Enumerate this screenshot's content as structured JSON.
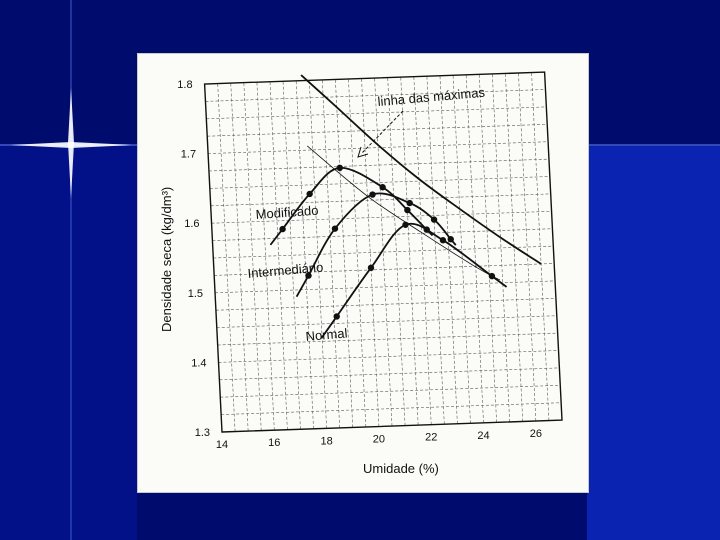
{
  "slide": {
    "background_color": "#000b6e",
    "band_color": "#0a23b0",
    "sparkle_color": "#ffffff"
  },
  "chart_data": {
    "type": "line",
    "title": "",
    "xlabel": "Umidade (%)",
    "ylabel": "Densidade seca (kg/dm³)",
    "xlim": [
      14,
      27
    ],
    "ylim": [
      1.3,
      1.8
    ],
    "xticks": [
      "14",
      "16",
      "18",
      "20",
      "22",
      "24",
      "26"
    ],
    "yticks": [
      "1.3",
      "1.4",
      "1.5",
      "1.6",
      "1.7",
      "1.8"
    ],
    "grid": true,
    "series": [
      {
        "name": "Modificado",
        "points": [
          [
            16.7,
            1.588
          ],
          [
            17.8,
            1.637
          ],
          [
            19.0,
            1.673
          ],
          [
            20.6,
            1.643
          ],
          [
            21.5,
            1.609
          ],
          [
            22.2,
            1.58
          ]
        ]
      },
      {
        "name": "Intermediário",
        "points": [
          [
            17.6,
            1.52
          ],
          [
            18.7,
            1.586
          ],
          [
            20.2,
            1.633
          ],
          [
            21.6,
            1.619
          ],
          [
            22.5,
            1.594
          ],
          [
            23.1,
            1.565
          ]
        ]
      },
      {
        "name": "Normal",
        "points": [
          [
            18.6,
            1.46
          ],
          [
            20.0,
            1.528
          ],
          [
            21.4,
            1.588
          ],
          [
            22.8,
            1.564
          ],
          [
            24.6,
            1.51
          ]
        ]
      }
    ],
    "max_line": {
      "label": "linha das máximas",
      "points": [
        [
          17.7,
          1.808
        ],
        [
          19.0,
          1.76
        ],
        [
          20.5,
          1.704
        ],
        [
          22.0,
          1.653
        ],
        [
          23.5,
          1.608
        ],
        [
          25.0,
          1.565
        ],
        [
          26.5,
          1.525
        ]
      ]
    },
    "optimum_line": {
      "points": [
        [
          17.8,
          1.706
        ],
        [
          20.0,
          1.631
        ],
        [
          22.0,
          1.576
        ],
        [
          24.0,
          1.524
        ],
        [
          24.9,
          1.504
        ]
      ]
    },
    "colors": {
      "ink": "#111111",
      "grid": "#5a5a5a",
      "paper": "#fbfbf8"
    }
  }
}
